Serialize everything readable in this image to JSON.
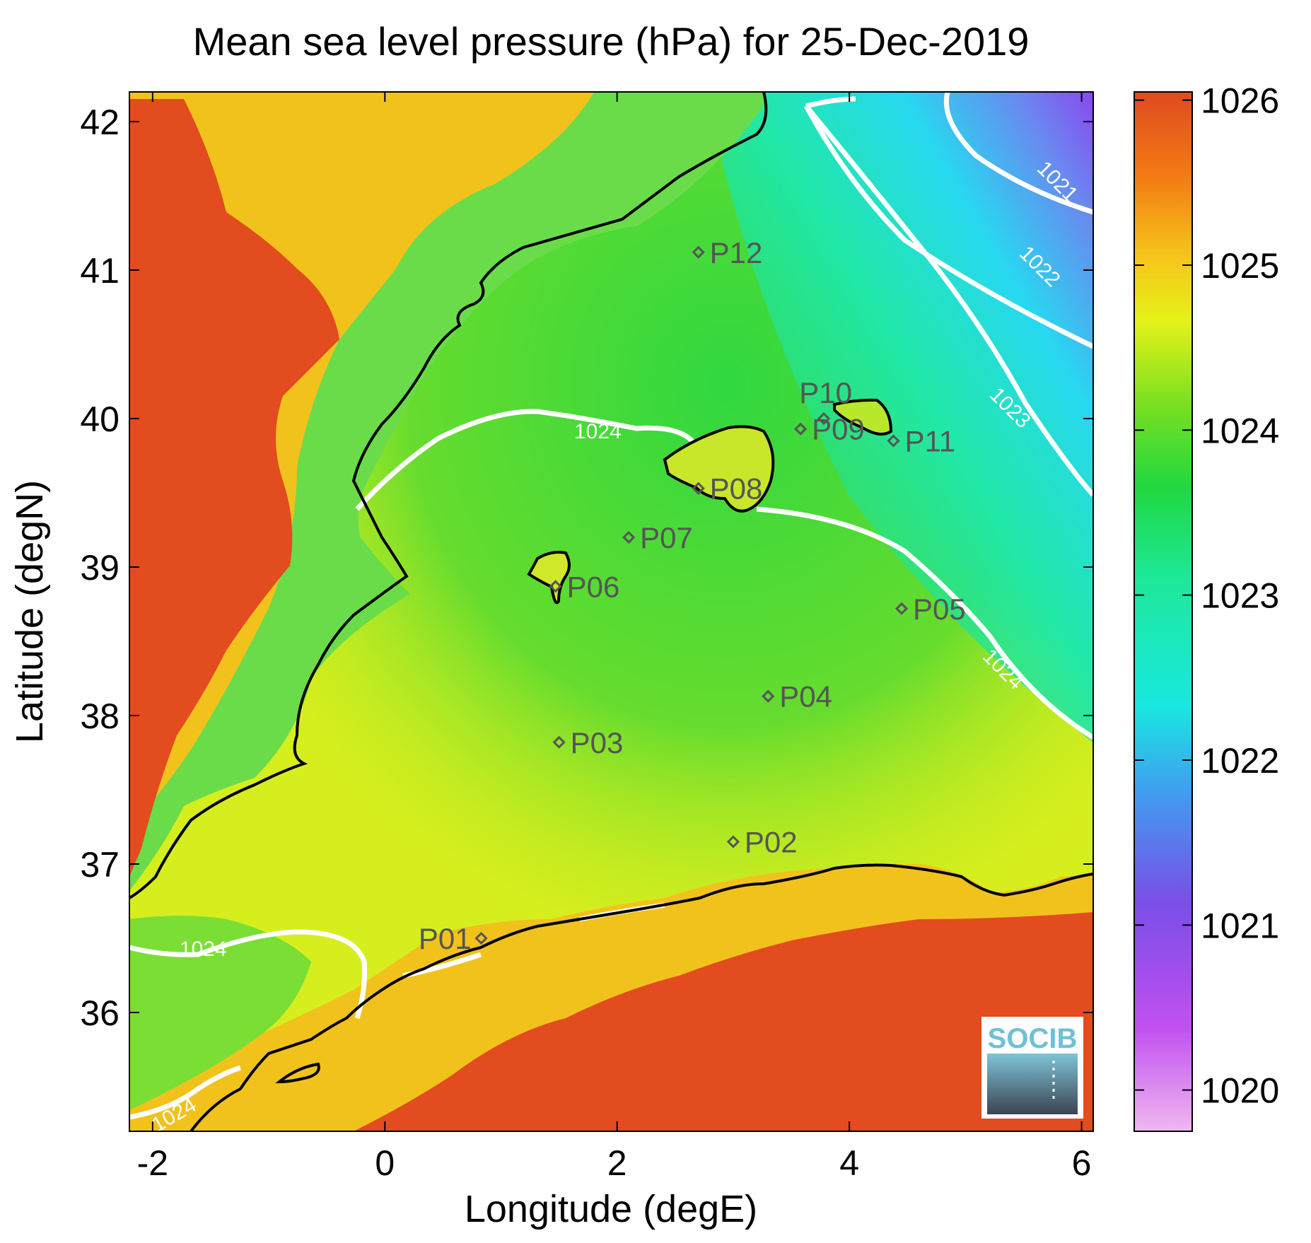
{
  "title": "Mean sea level pressure (hPa) for 25-Dec-2019",
  "chart_data": {
    "type": "heatmap",
    "title": "Mean sea level pressure (hPa) for 25-Dec-2019",
    "xlabel": "Longitude (degE)",
    "ylabel": "Latitude (degN)",
    "xlim": [
      -2.2,
      6.1
    ],
    "ylim": [
      35.2,
      42.2
    ],
    "x_ticks": [
      "-2",
      "0",
      "2",
      "4",
      "6"
    ],
    "y_ticks": [
      "36",
      "37",
      "38",
      "39",
      "40",
      "41",
      "42"
    ],
    "colorbar": {
      "range": [
        1019.75,
        1026.05
      ],
      "ticks": [
        "1020",
        "1021",
        "1022",
        "1023",
        "1024",
        "1025",
        "1026"
      ]
    },
    "contour_labels": [
      "1021",
      "1022",
      "1023",
      "1024",
      "1024",
      "1024",
      "1024"
    ],
    "points": [
      {
        "name": "P01",
        "lon": 0.83,
        "lat": 36.5
      },
      {
        "name": "P02",
        "lon": 3.0,
        "lat": 37.15
      },
      {
        "name": "P03",
        "lon": 1.5,
        "lat": 37.82
      },
      {
        "name": "P04",
        "lon": 3.3,
        "lat": 38.13
      },
      {
        "name": "P05",
        "lon": 4.45,
        "lat": 38.72
      },
      {
        "name": "P06",
        "lon": 1.47,
        "lat": 38.87
      },
      {
        "name": "P07",
        "lon": 2.1,
        "lat": 39.2
      },
      {
        "name": "P08",
        "lon": 2.7,
        "lat": 39.53
      },
      {
        "name": "P09",
        "lon": 3.58,
        "lat": 39.93
      },
      {
        "name": "P10",
        "lon": 3.78,
        "lat": 40.0
      },
      {
        "name": "P11",
        "lon": 4.38,
        "lat": 39.85
      },
      {
        "name": "P12",
        "lon": 2.7,
        "lat": 41.12
      }
    ]
  },
  "logo": {
    "text": "SOCIB"
  }
}
